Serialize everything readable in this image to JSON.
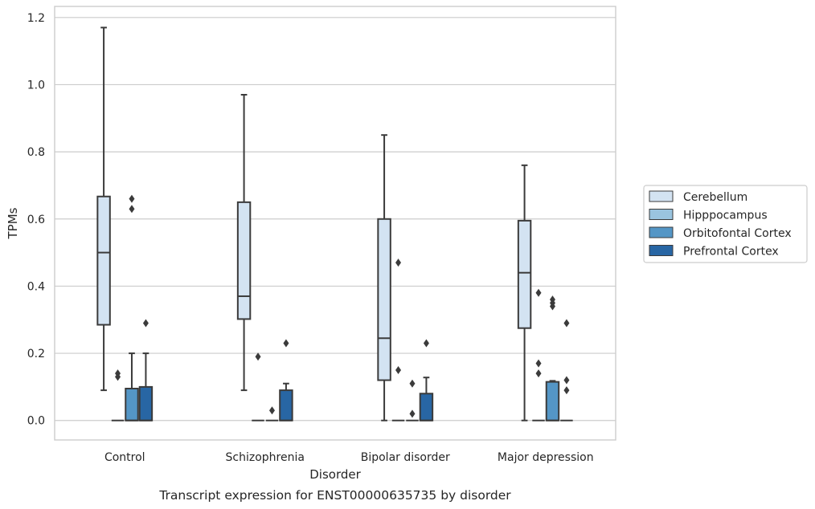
{
  "chart_data": {
    "type": "box",
    "caption": "Transcript expression for ENST00000635735 by disorder",
    "xlabel": "Disorder",
    "ylabel": "TPMs",
    "ylim": [
      -0.058,
      1.233
    ],
    "yticks": [
      "0.0",
      "0.2",
      "0.4",
      "0.6",
      "0.8",
      "1.0",
      "1.2"
    ],
    "grid": "horizontal",
    "legend_position": "right",
    "categories": [
      "Control",
      "Schizophrenia",
      "Bipolar disorder",
      "Major depression"
    ],
    "series": [
      {
        "name": "Cerebellum",
        "color": "#d3e3f2",
        "boxes": [
          {
            "whislo": 0.09,
            "q1": 0.285,
            "med": 0.5,
            "q3": 0.667,
            "whishi": 1.17,
            "fliers": []
          },
          {
            "whislo": 0.09,
            "q1": 0.302,
            "med": 0.37,
            "q3": 0.65,
            "whishi": 0.97,
            "fliers": []
          },
          {
            "whislo": 0.0,
            "q1": 0.12,
            "med": 0.245,
            "q3": 0.6,
            "whishi": 0.85,
            "fliers": []
          },
          {
            "whislo": 0.0,
            "q1": 0.275,
            "med": 0.44,
            "q3": 0.595,
            "whishi": 0.76,
            "fliers": []
          }
        ]
      },
      {
        "name": "Hipppocampus",
        "color": "#9ac4df",
        "boxes": [
          {
            "whislo": 0.0,
            "q1": 0.0,
            "med": 0.0,
            "q3": 0.0,
            "whishi": 0.0,
            "fliers": [
              0.14,
              0.13
            ]
          },
          {
            "whislo": 0.0,
            "q1": 0.0,
            "med": 0.0,
            "q3": 0.0,
            "whishi": 0.0,
            "fliers": [
              0.19
            ]
          },
          {
            "whislo": 0.0,
            "q1": 0.0,
            "med": 0.0,
            "q3": 0.0,
            "whishi": 0.0,
            "fliers": [
              0.47,
              0.15
            ]
          },
          {
            "whislo": 0.0,
            "q1": 0.0,
            "med": 0.0,
            "q3": 0.0,
            "whishi": 0.0,
            "fliers": [
              0.38,
              0.17,
              0.14
            ]
          }
        ]
      },
      {
        "name": "Orbitofontal Cortex",
        "color": "#5496c6",
        "boxes": [
          {
            "whislo": 0.0,
            "q1": 0.0,
            "med": 0.0,
            "q3": 0.095,
            "whishi": 0.2,
            "fliers": [
              0.66,
              0.63
            ]
          },
          {
            "whislo": 0.0,
            "q1": 0.0,
            "med": 0.0,
            "q3": 0.0,
            "whishi": 0.0,
            "fliers": [
              0.03
            ]
          },
          {
            "whislo": 0.0,
            "q1": 0.0,
            "med": 0.0,
            "q3": 0.0,
            "whishi": 0.0,
            "fliers": [
              0.11,
              0.02
            ]
          },
          {
            "whislo": 0.0,
            "q1": 0.0,
            "med": 0.0,
            "q3": 0.115,
            "whishi": 0.118,
            "fliers": [
              0.36,
              0.35,
              0.34
            ]
          }
        ]
      },
      {
        "name": "Prefrontal Cortex",
        "color": "#2866a4",
        "boxes": [
          {
            "whislo": 0.0,
            "q1": 0.0,
            "med": 0.0,
            "q3": 0.1,
            "whishi": 0.2,
            "fliers": [
              0.29
            ]
          },
          {
            "whislo": 0.0,
            "q1": 0.0,
            "med": 0.0,
            "q3": 0.09,
            "whishi": 0.11,
            "fliers": [
              0.23
            ]
          },
          {
            "whislo": 0.0,
            "q1": 0.0,
            "med": 0.0,
            "q3": 0.08,
            "whishi": 0.128,
            "fliers": [
              0.23
            ]
          },
          {
            "whislo": 0.0,
            "q1": 0.0,
            "med": 0.0,
            "q3": 0.0,
            "whishi": 0.0,
            "fliers": [
              0.29,
              0.12,
              0.09
            ]
          }
        ]
      }
    ]
  }
}
